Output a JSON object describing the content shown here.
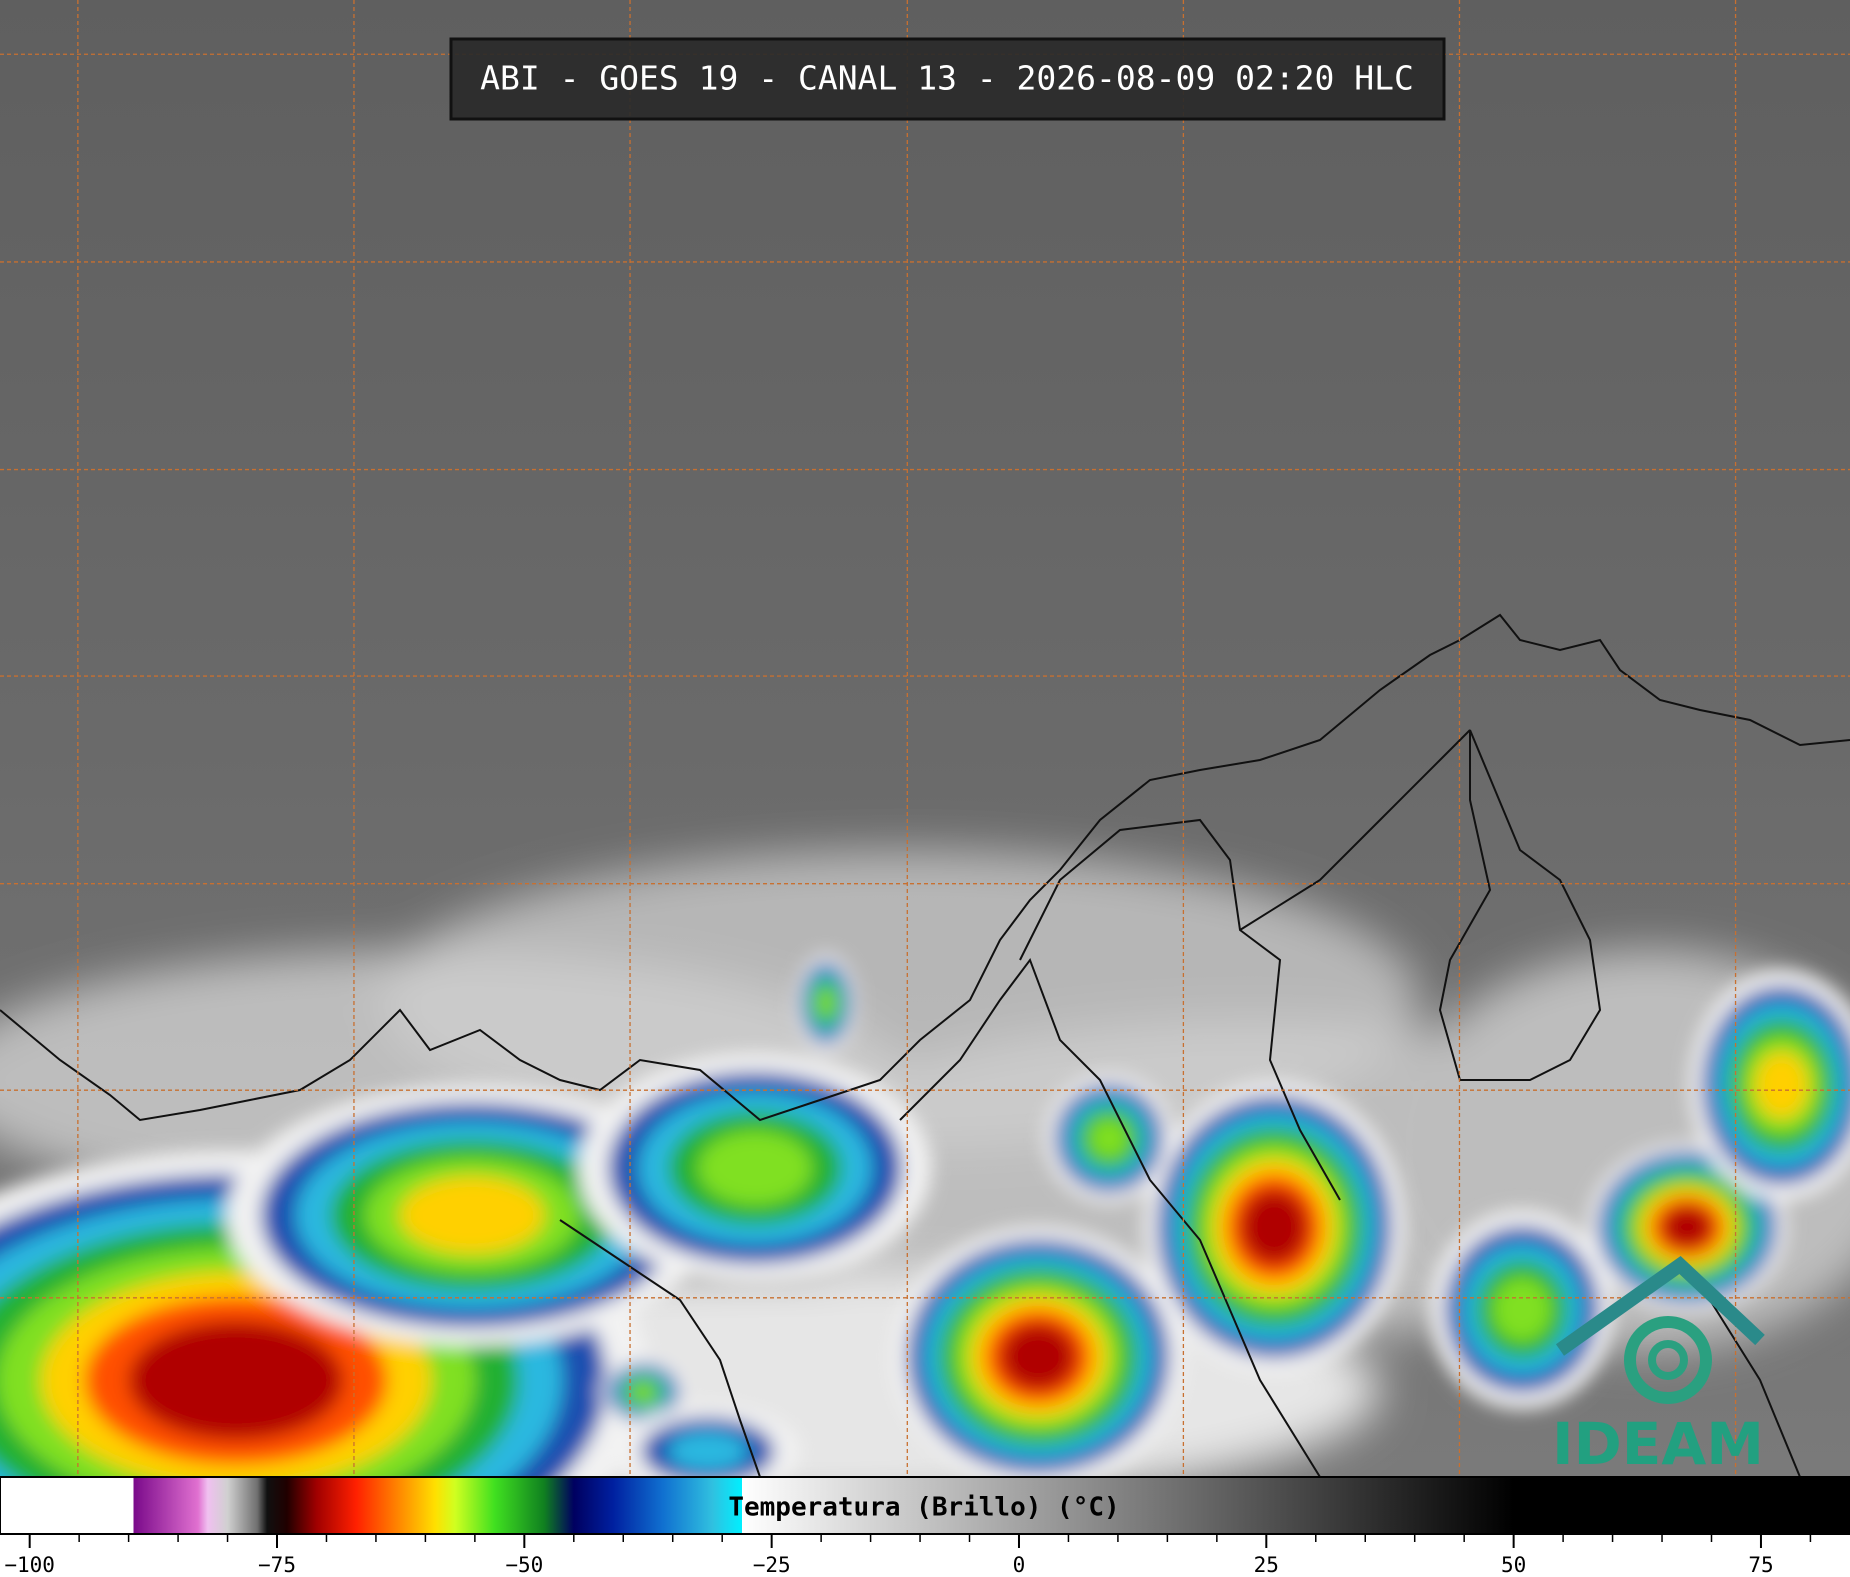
{
  "header": {
    "title": "ABI - GOES 19 - CANAL 13 - 2026-08-09 02:20 HLC"
  },
  "logo": {
    "text": "IDEAM"
  },
  "colorbar": {
    "label": "Temperatura (Brillo) (°C)",
    "xlim": [
      -103,
      84
    ],
    "ticks": [
      {
        "value": -100,
        "label": "−100"
      },
      {
        "value": -75,
        "label": "−75"
      },
      {
        "value": -50,
        "label": "−50"
      },
      {
        "value": -25,
        "label": "−25"
      },
      0,
      25,
      50,
      75
    ],
    "minor_ticks": [
      -95,
      -90,
      -85,
      -80,
      -70,
      -65,
      -60,
      -55,
      -45,
      -40,
      -35,
      -30,
      -20,
      -15,
      -10,
      -5,
      5,
      10,
      15,
      20,
      30,
      35,
      40,
      45,
      55,
      60,
      65,
      70,
      80
    ],
    "colormap": [
      {
        "value": -103,
        "color": "#ffffff"
      },
      {
        "value": -89.5,
        "color": "#ffffff"
      },
      {
        "value": -89.5,
        "color": "#7a0a8a"
      },
      {
        "value": -83,
        "color": "#e070d0"
      },
      {
        "value": -82,
        "color": "#f0c0f0"
      },
      {
        "value": -80,
        "color": "#d0d0d0"
      },
      {
        "value": -77,
        "color": "#707070"
      },
      {
        "value": -76,
        "color": "#101010"
      },
      {
        "value": -74,
        "color": "#200000"
      },
      {
        "value": -71,
        "color": "#a00000"
      },
      {
        "value": -67,
        "color": "#ff2000"
      },
      {
        "value": -63,
        "color": "#ff8000"
      },
      {
        "value": -59,
        "color": "#ffe000"
      },
      {
        "value": -57,
        "color": "#d0ff20"
      },
      {
        "value": -53,
        "color": "#40e020"
      },
      {
        "value": -48,
        "color": "#108020"
      },
      {
        "value": -45,
        "color": "#000060"
      },
      {
        "value": -41,
        "color": "#0020a0"
      },
      {
        "value": -36,
        "color": "#1070d0"
      },
      {
        "value": -31,
        "color": "#30c0e0"
      },
      {
        "value": -28,
        "color": "#00f0ff"
      },
      {
        "value": -28,
        "color": "#ffffff"
      },
      {
        "value": 50,
        "color": "#000000"
      },
      {
        "value": 84,
        "color": "#000000"
      }
    ]
  }
}
